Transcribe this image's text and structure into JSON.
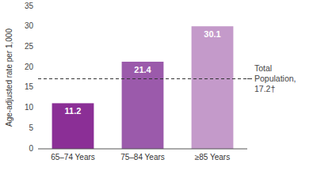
{
  "chart_data": {
    "type": "bar",
    "categories": [
      "65–74 Years",
      "75–84 Years",
      "≥85 Years"
    ],
    "values": [
      11.2,
      21.4,
      30.1
    ],
    "colors": [
      "#8b2f96",
      "#9b5aab",
      "#c49aca"
    ],
    "ylabel": "Age-adjusted rate per 1,000",
    "ylim": [
      0,
      35
    ],
    "yticks": [
      0,
      5,
      10,
      15,
      20,
      25,
      30,
      35
    ],
    "grid": false,
    "data_labels": true,
    "annotations": [
      {
        "value": 17.2,
        "label": "Total\nPopulation,\n17.2†"
      }
    ]
  }
}
